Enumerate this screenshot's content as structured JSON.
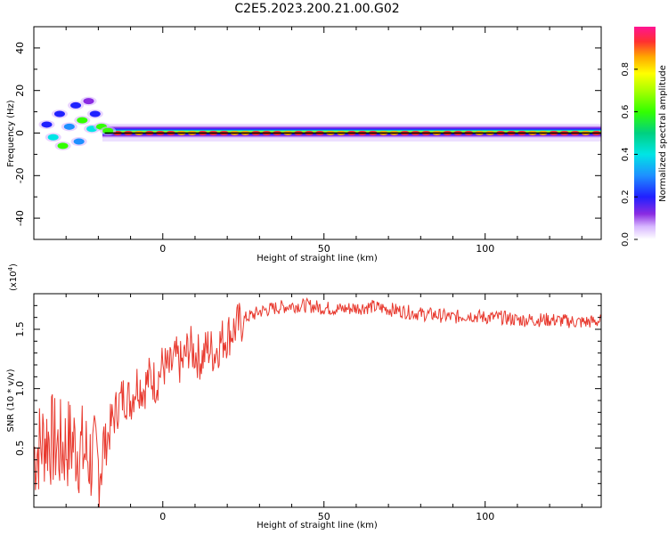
{
  "title": "C2E5.2023.200.21.00.G02",
  "chart_data": [
    {
      "type": "heatmap",
      "xlabel": "Height of straight line (km)",
      "ylabel": "Frequency (Hz)",
      "xlim": [
        -40,
        136
      ],
      "ylim": [
        -50,
        50
      ],
      "xticks": [
        0,
        50,
        100
      ],
      "yticks": [
        -40,
        -20,
        0,
        20,
        40
      ],
      "grid": false,
      "colorbar": {
        "label": "Normalized spectral amplitude",
        "range": [
          0,
          1
        ],
        "ticks": [
          "0.0",
          "0.2",
          "0.4",
          "0.6",
          "0.8"
        ]
      },
      "ridge_line_hz": 0,
      "scattered_low_height_clusters": [
        {
          "x": -36,
          "y": 4,
          "v": 0.32
        },
        {
          "x": -34,
          "y": -2,
          "v": 0.45
        },
        {
          "x": -32,
          "y": 9,
          "v": 0.3
        },
        {
          "x": -31,
          "y": -6,
          "v": 0.55
        },
        {
          "x": -29,
          "y": 3,
          "v": 0.4
        },
        {
          "x": -27,
          "y": 13,
          "v": 0.25
        },
        {
          "x": -26,
          "y": -4,
          "v": 0.35
        },
        {
          "x": -25,
          "y": 6,
          "v": 0.6
        },
        {
          "x": -23,
          "y": 15,
          "v": 0.2
        },
        {
          "x": -22,
          "y": 2,
          "v": 0.5
        },
        {
          "x": -21,
          "y": 9,
          "v": 0.3
        },
        {
          "x": -19,
          "y": 3,
          "v": 0.65
        },
        {
          "x": -17,
          "y": 1,
          "v": 0.55
        }
      ]
    },
    {
      "type": "line",
      "xlabel": "Height of straight line (km)",
      "ylabel": "SNR (10 * v/v)",
      "y_multiplier": "(x10",
      "y_multiplier_exp": "4",
      "y_multiplier_close": ")",
      "xlim": [
        -40,
        136
      ],
      "ylim": [
        0,
        1.8
      ],
      "xticks": [
        0,
        50,
        100
      ],
      "yticks": [
        "0.5",
        "1.0",
        "1.5"
      ],
      "grid": false,
      "color": "#e8392e",
      "series": [
        {
          "x": [
            -40,
            -36,
            -32,
            -28,
            -24,
            -20,
            -18,
            -16,
            -14,
            -12,
            -10,
            -8,
            -6,
            -4,
            -2,
            0,
            2,
            4,
            6,
            8,
            10,
            12,
            14,
            16,
            18,
            20,
            22,
            24,
            26,
            28,
            30,
            35,
            40,
            45,
            50,
            55,
            60,
            65,
            70,
            75,
            80,
            85,
            90,
            95,
            100,
            105,
            110,
            115,
            120,
            125,
            130,
            136
          ],
          "y": [
            0.45,
            0.6,
            0.5,
            0.55,
            0.45,
            0.35,
            0.5,
            0.7,
            0.85,
            0.95,
            0.9,
            1.05,
            1.0,
            1.1,
            1.05,
            1.2,
            1.15,
            1.25,
            1.2,
            1.35,
            1.3,
            1.25,
            1.35,
            1.3,
            1.4,
            1.45,
            1.5,
            1.55,
            1.6,
            1.62,
            1.65,
            1.68,
            1.7,
            1.7,
            1.68,
            1.67,
            1.68,
            1.69,
            1.67,
            1.65,
            1.63,
            1.62,
            1.6,
            1.62,
            1.6,
            1.6,
            1.58,
            1.58,
            1.58,
            1.57,
            1.56,
            1.57
          ]
        }
      ]
    }
  ]
}
